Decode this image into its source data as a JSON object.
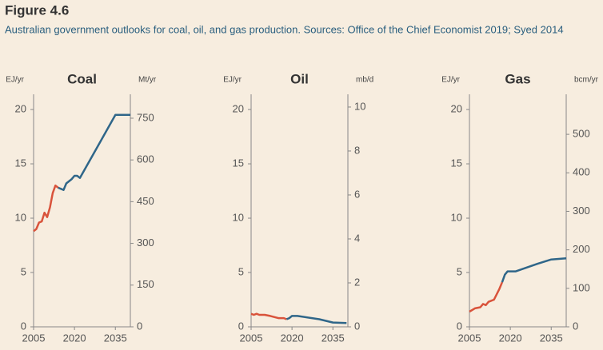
{
  "header": {
    "title": "Figure 4.6",
    "subtitle": "Australian government outlooks for coal, oil, and gas production. Sources: Office of the Chief Economist 2019; Syed 2014"
  },
  "chart_data": [
    {
      "type": "line",
      "title": "Coal",
      "ylabel": "EJ/yr",
      "y2label": "Mt/yr",
      "xlim": [
        2005,
        2040.5
      ],
      "xticks": [
        2005,
        2020,
        2035
      ],
      "ylim": [
        0,
        21.4
      ],
      "yticks": [
        0,
        5,
        10,
        15,
        20
      ],
      "y2lim": [
        0,
        836
      ],
      "y2ticks": [
        0,
        150,
        300,
        450,
        600,
        750
      ],
      "series": [
        {
          "color": "#d9533b",
          "x": [
            2005,
            2006,
            2007,
            2008,
            2009,
            2010,
            2011,
            2012,
            2013,
            2014
          ],
          "values": [
            8.8,
            9.0,
            9.6,
            9.7,
            10.5,
            10.1,
            11.0,
            12.3,
            13.0,
            12.8
          ]
        },
        {
          "color": "#2f6689",
          "x": [
            2014,
            2016,
            2017,
            2019,
            2020,
            2021,
            2022,
            2035,
            2040.5
          ],
          "values": [
            12.8,
            12.6,
            13.2,
            13.6,
            13.9,
            13.9,
            13.7,
            19.5,
            19.5
          ]
        }
      ]
    },
    {
      "type": "line",
      "title": "Oil",
      "ylabel": "EJ/yr",
      "y2label": "mb/d",
      "xlim": [
        2005,
        2040.5
      ],
      "xticks": [
        2005,
        2020,
        2035
      ],
      "ylim": [
        0,
        21.4
      ],
      "yticks": [
        0,
        5,
        10,
        15,
        20
      ],
      "y2lim": [
        0,
        10.58
      ],
      "y2ticks": [
        0,
        2,
        4,
        6,
        8,
        10
      ],
      "series": [
        {
          "color": "#d9533b",
          "x": [
            2005,
            2006,
            2007,
            2008,
            2010,
            2012,
            2015,
            2017,
            2018
          ],
          "values": [
            1.2,
            1.1,
            1.2,
            1.1,
            1.1,
            1.0,
            0.8,
            0.8,
            0.7
          ]
        },
        {
          "color": "#2f6689",
          "x": [
            2018,
            2019,
            2020,
            2022,
            2030,
            2035,
            2040
          ],
          "values": [
            0.7,
            0.8,
            1.0,
            1.0,
            0.7,
            0.4,
            0.35
          ]
        }
      ]
    },
    {
      "type": "line",
      "title": "Gas",
      "ylabel": "EJ/yr",
      "y2label": "bcm/yr",
      "xlim": [
        2005,
        2040.5
      ],
      "xticks": [
        2005,
        2020,
        2035
      ],
      "ylim": [
        0,
        21.4
      ],
      "yticks": [
        0,
        5,
        10,
        15,
        20
      ],
      "y2lim": [
        0,
        604
      ],
      "y2ticks": [
        0,
        100,
        200,
        300,
        400,
        500
      ],
      "series": [
        {
          "color": "#d9533b",
          "x": [
            2005,
            2007,
            2009,
            2010,
            2011,
            2012,
            2014,
            2016,
            2017
          ],
          "values": [
            1.4,
            1.7,
            1.8,
            2.1,
            2.0,
            2.3,
            2.5,
            3.5,
            4.1
          ]
        },
        {
          "color": "#2f6689",
          "x": [
            2017,
            2018,
            2019,
            2022,
            2030,
            2035,
            2040.5
          ],
          "values": [
            4.1,
            4.8,
            5.1,
            5.1,
            5.8,
            6.2,
            6.3
          ]
        }
      ]
    }
  ]
}
